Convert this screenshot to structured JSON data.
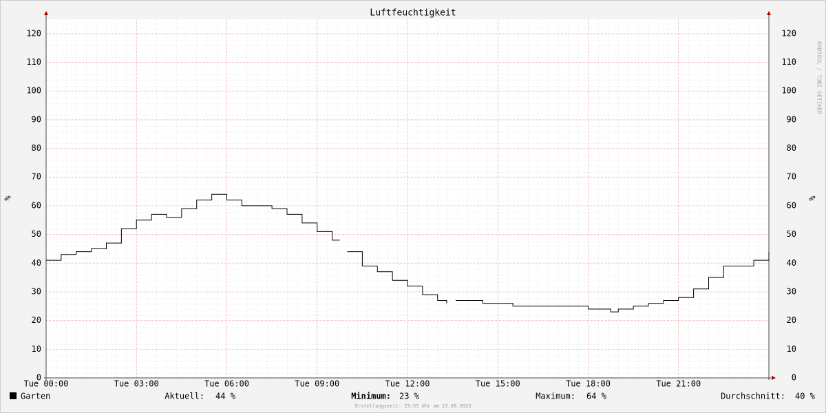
{
  "chart_data": {
    "type": "line",
    "title": "Luftfeuchtigkeit",
    "y_label": "%",
    "watermark": "RRDTOOL / TOBI OETIKER",
    "x": [
      0,
      0.5,
      1,
      1.5,
      2,
      2.5,
      3,
      3.5,
      4,
      4.5,
      5,
      5.5,
      6,
      6.5,
      7,
      7.5,
      8,
      8.5,
      9,
      9.5,
      9.75,
      9.85,
      10,
      10.5,
      11,
      11.5,
      12,
      12.5,
      13,
      13.3,
      13.45,
      13.6,
      14,
      14.5,
      15,
      15.5,
      16,
      16.5,
      17,
      17.5,
      18,
      18.5,
      18.75,
      19,
      19.5,
      20,
      20.5,
      21,
      21.5,
      22,
      22.5,
      23,
      23.5,
      24
    ],
    "series": [
      {
        "name": "Garten",
        "color": "#000000",
        "values": [
          41,
          43,
          44,
          45,
          47,
          52,
          55,
          57,
          56,
          59,
          62,
          64,
          62,
          60,
          60,
          59,
          57,
          54,
          51,
          48,
          48,
          null,
          44,
          39,
          37,
          34,
          32,
          29,
          27,
          26,
          null,
          27,
          27,
          26,
          26,
          25,
          25,
          25,
          25,
          25,
          24,
          24,
          23,
          24,
          25,
          26,
          27,
          28,
          31,
          35,
          39,
          39,
          41,
          44
        ]
      }
    ],
    "xlim": [
      0,
      24
    ],
    "xticks": [
      {
        "value": 0,
        "label": "Tue 00:00"
      },
      {
        "value": 3,
        "label": "Tue 03:00"
      },
      {
        "value": 6,
        "label": "Tue 06:00"
      },
      {
        "value": 9,
        "label": "Tue 09:00"
      },
      {
        "value": 12,
        "label": "Tue 12:00"
      },
      {
        "value": 15,
        "label": "Tue 15:00"
      },
      {
        "value": 18,
        "label": "Tue 18:00"
      },
      {
        "value": 21,
        "label": "Tue 21:00"
      }
    ],
    "ylim": [
      0,
      125
    ],
    "yticks": [
      0,
      10,
      20,
      30,
      40,
      50,
      60,
      70,
      80,
      90,
      100,
      110,
      120
    ],
    "grid": true
  },
  "stats": [
    {
      "label": "Aktuell:",
      "text": "44 %"
    },
    {
      "label": "Minimum:",
      "text": "23 %"
    },
    {
      "label": "Maximum:",
      "text": "64 %"
    },
    {
      "label": "Durchschnitt:",
      "text": "40 %"
    }
  ],
  "footer": "Erstellungszeit: 23:55 Uhr am 13.06.2023"
}
